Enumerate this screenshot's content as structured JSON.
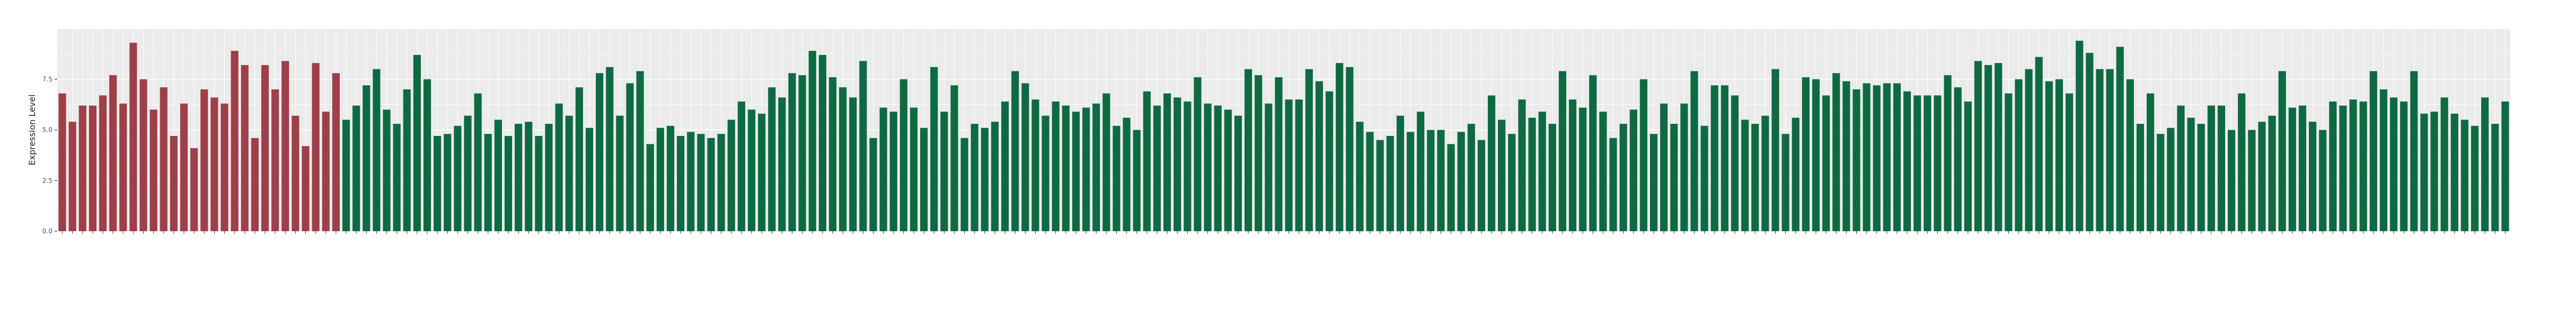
{
  "chart_data": {
    "type": "bar",
    "title": "",
    "xlabel": "",
    "ylabel": "Expression Level",
    "ylim": [
      0,
      10
    ],
    "yticks": [
      0.0,
      2.5,
      5.0,
      7.5
    ],
    "ytick_labels": [
      "0.0",
      "2.5",
      "5.0",
      "7.5"
    ],
    "grid": true,
    "legend": "none",
    "colors": {
      "group_a": "#9e3f4a",
      "group_b": "#0e6a43",
      "panel": "#ebebeb",
      "gridline": "#ffffff"
    },
    "group_a_count": 28,
    "x_tick_labels_legible": false,
    "values": [
      6.8,
      5.4,
      6.2,
      6.2,
      6.7,
      7.7,
      6.3,
      9.3,
      7.5,
      6.0,
      7.1,
      4.7,
      6.3,
      4.1,
      7.0,
      6.6,
      6.3,
      8.9,
      8.2,
      4.6,
      8.2,
      7.0,
      8.4,
      5.7,
      4.2,
      8.3,
      5.9,
      7.8,
      5.5,
      6.2,
      7.2,
      8.0,
      6.0,
      5.3,
      7.0,
      8.7,
      7.5,
      4.7,
      4.8,
      5.2,
      5.7,
      6.8,
      4.8,
      5.5,
      4.7,
      5.3,
      5.4,
      4.7,
      5.3,
      6.3,
      5.7,
      7.1,
      5.1,
      7.8,
      8.1,
      5.7,
      7.3,
      7.9,
      4.3,
      5.1,
      5.2,
      4.7,
      4.9,
      4.8,
      4.6,
      4.8,
      5.5,
      6.4,
      6.0,
      5.8,
      7.1,
      6.6,
      7.8,
      7.7,
      8.9,
      8.7,
      7.6,
      7.1,
      6.6,
      8.4,
      4.6,
      6.1,
      5.9,
      7.5,
      6.1,
      5.1,
      8.1,
      5.9,
      7.2,
      4.6,
      5.3,
      5.1,
      5.4,
      6.4,
      7.9,
      7.3,
      6.5,
      5.7,
      6.4,
      6.2,
      5.9,
      6.1,
      6.3,
      6.8,
      5.2,
      5.6,
      5.0,
      6.9,
      6.2,
      6.8,
      6.6,
      6.4,
      7.6,
      6.3,
      6.2,
      6.0,
      5.7,
      8.0,
      7.7,
      6.3,
      7.6,
      6.5,
      6.5,
      8.0,
      7.4,
      6.9,
      8.3,
      8.1,
      5.4,
      4.9,
      4.5,
      4.7,
      5.7,
      4.9,
      5.9,
      5.0,
      5.0,
      4.3,
      4.9,
      5.3,
      4.5,
      6.7,
      5.5,
      4.8,
      6.5,
      5.6,
      5.9,
      5.3,
      7.9,
      6.5,
      6.1,
      7.7,
      5.9,
      4.6,
      5.3,
      6.0,
      7.5,
      4.8,
      6.3,
      5.3,
      6.3,
      7.9,
      5.2,
      7.2,
      7.2,
      6.7,
      5.5,
      5.3,
      5.7,
      8.0,
      4.8,
      5.6,
      7.6,
      7.5,
      6.7,
      7.8,
      7.4,
      7.0,
      7.3,
      7.2,
      7.3,
      7.3,
      6.9,
      6.7,
      6.7,
      6.7,
      7.7,
      7.1,
      6.4,
      8.4,
      8.2,
      8.3,
      6.8,
      7.5,
      8.0,
      8.6,
      7.4,
      7.5,
      6.8,
      9.4,
      8.8,
      8.0,
      8.0,
      9.1,
      7.5,
      5.3,
      6.8,
      4.8,
      5.1,
      6.2,
      5.6,
      5.3,
      6.2,
      6.2,
      5.0,
      6.8,
      5.0,
      5.4,
      5.7,
      7.9,
      6.1,
      6.2,
      5.4,
      5.0,
      6.4,
      6.2,
      6.5,
      6.4,
      7.9,
      7.0,
      6.6,
      6.4,
      7.9,
      5.8,
      5.9,
      6.6,
      5.8,
      5.5,
      5.2,
      6.6,
      5.3,
      6.4
    ]
  }
}
